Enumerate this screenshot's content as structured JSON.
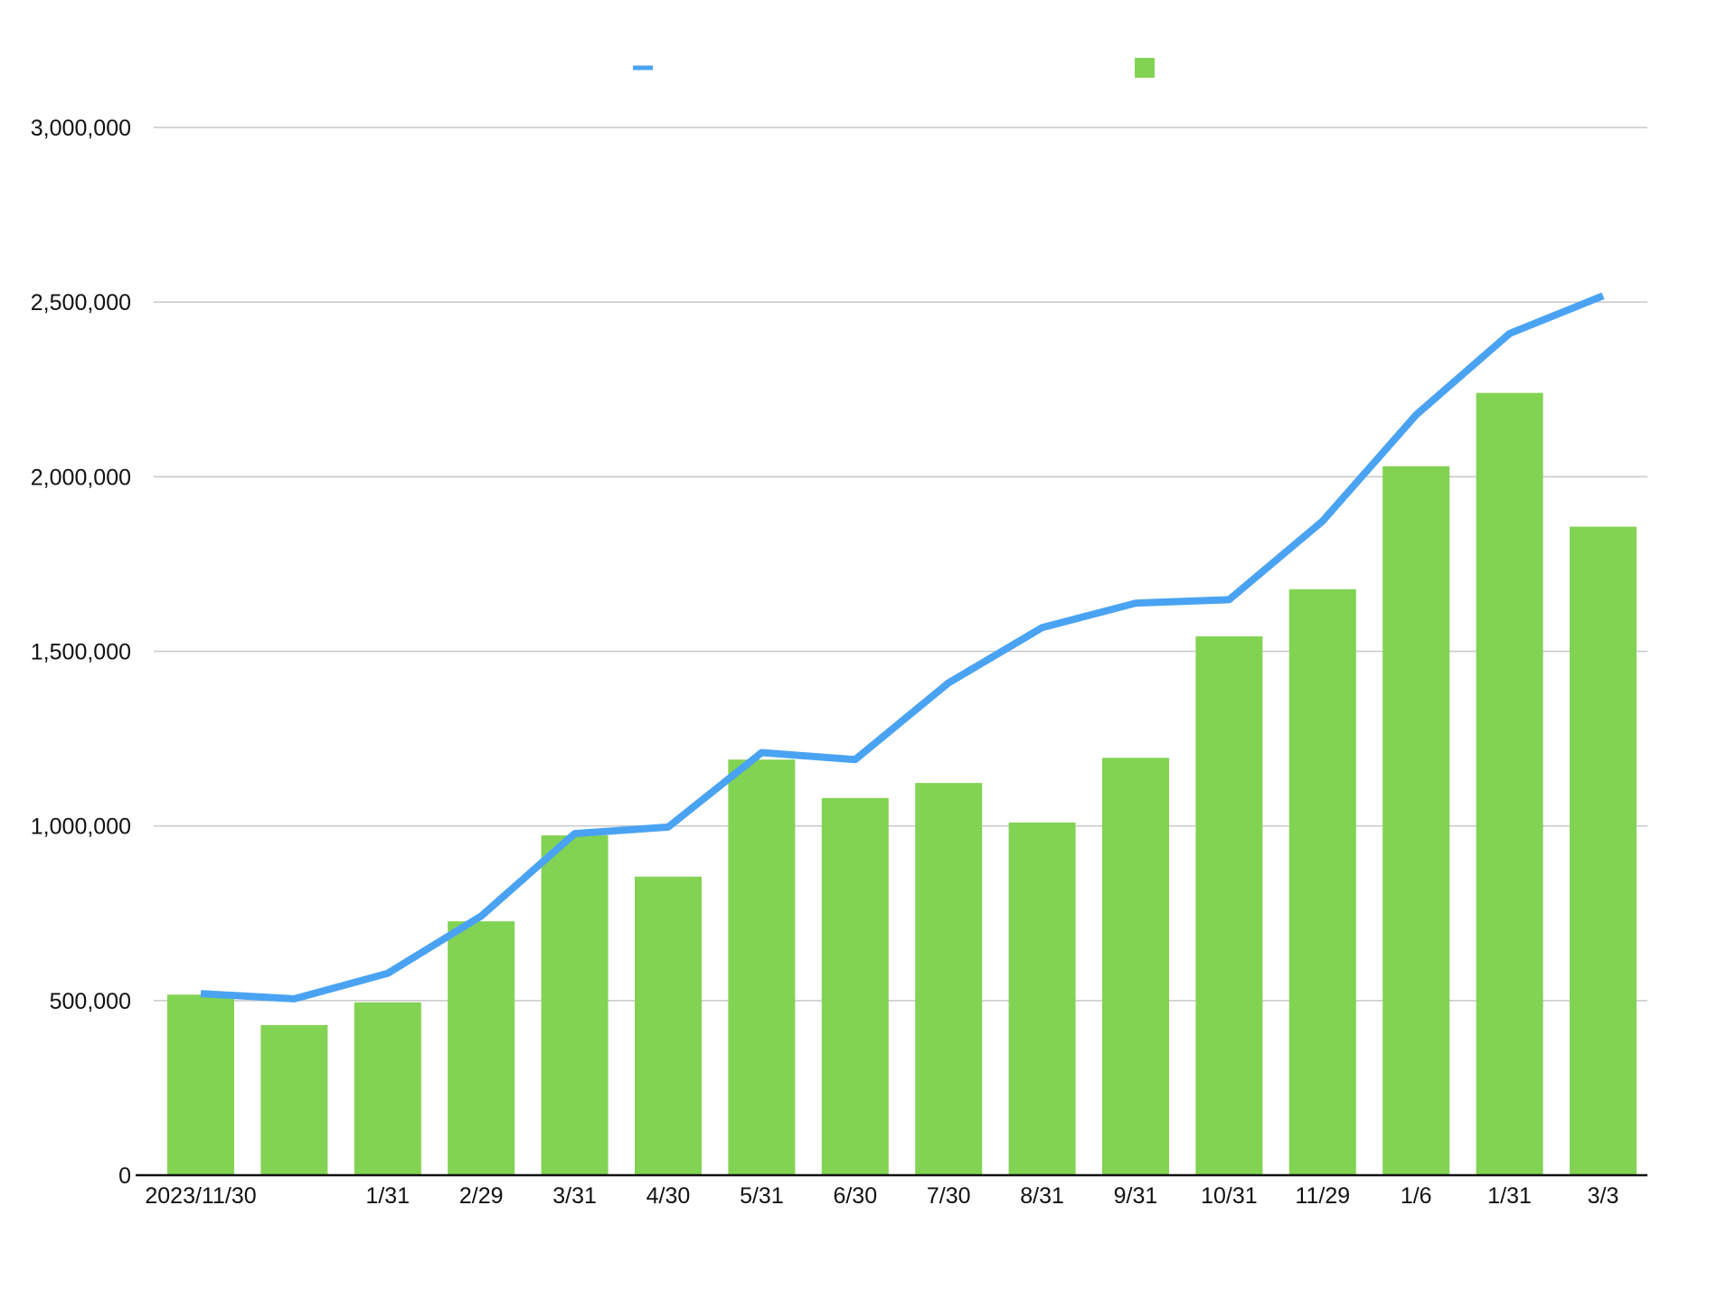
{
  "colors": {
    "line_series": "#4aa3f2",
    "bar_series": "#82d353",
    "grid": "#c8c8c8",
    "axis": "#111111",
    "text": "#111111"
  },
  "chart_data": {
    "type": "bar",
    "title": "",
    "xlabel": "",
    "ylabel": "",
    "grid": true,
    "legend": {
      "position": "top-center",
      "entries": [
        {
          "marker": "line",
          "label": ""
        },
        {
          "marker": "square",
          "label": ""
        }
      ]
    },
    "ylim": [
      0,
      3000000
    ],
    "yticks": [
      0,
      500000,
      1000000,
      1500000,
      2000000,
      2500000,
      3000000
    ],
    "ytick_labels": [
      "0",
      "500,000",
      "1,000,000",
      "1,500,000",
      "2,000,000",
      "2,500,000",
      "3,000,000"
    ],
    "categories": [
      "2023/11/30",
      "",
      "1/31",
      "2/29",
      "3/31",
      "4/30",
      "5/31",
      "6/30",
      "7/30",
      "8/31",
      "9/31",
      "10/31",
      "11/29",
      "1/6",
      "1/31",
      "3/3"
    ],
    "series": [
      {
        "type": "bar",
        "values": [
          517000,
          430000,
          495000,
          727000,
          973000,
          855000,
          1190000,
          1080000,
          1123000,
          1010000,
          1195000,
          1543000,
          1678000,
          2030000,
          2240000,
          1857000
        ]
      },
      {
        "type": "line",
        "values": [
          520000,
          505000,
          578000,
          742000,
          978000,
          997000,
          1210000,
          1190000,
          1410000,
          1568000,
          1638000,
          1648000,
          1873000,
          2177000,
          2410000,
          2518000
        ]
      }
    ]
  }
}
